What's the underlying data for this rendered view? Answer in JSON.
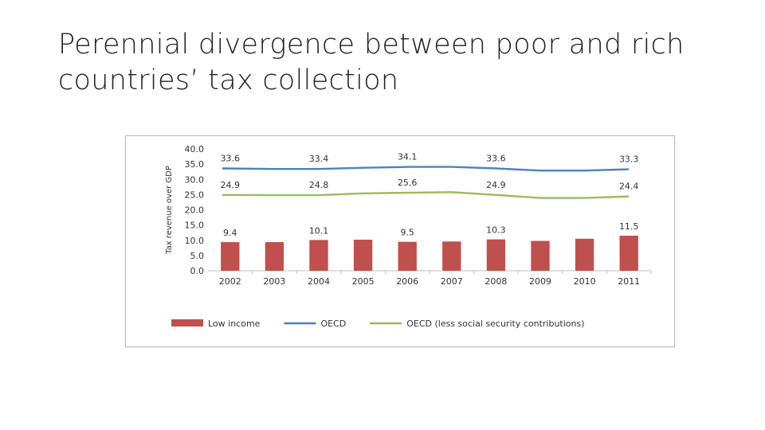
{
  "slide": {
    "title_line1": "Perennial divergence between poor and rich",
    "title_line2": "countries’ tax collection"
  },
  "chart_data": {
    "type": "bar",
    "ylabel": "Tax revenue over GDP",
    "ylim": [
      0,
      40
    ],
    "yticks": [
      "0.0",
      "5.0",
      "10.0",
      "15.0",
      "20.0",
      "25.0",
      "30.0",
      "35.0",
      "40.0"
    ],
    "categories": [
      "2002",
      "2003",
      "2004",
      "2005",
      "2006",
      "2007",
      "2008",
      "2009",
      "2010",
      "2011"
    ],
    "grid": false,
    "legend_position": "bottom",
    "series": [
      {
        "name": "Low income",
        "kind": "bar",
        "color": "#c0504d",
        "values": [
          9.4,
          9.4,
          10.1,
          10.2,
          9.5,
          9.6,
          10.3,
          9.8,
          10.5,
          11.5
        ],
        "labels": [
          "9.4",
          "",
          "10.1",
          "",
          "9.5",
          "",
          "10.3",
          "",
          "",
          "11.5"
        ]
      },
      {
        "name": "OECD",
        "kind": "line",
        "color": "#4f81bd",
        "values": [
          33.6,
          33.4,
          33.4,
          33.8,
          34.1,
          34.1,
          33.6,
          32.9,
          32.9,
          33.3
        ],
        "labels": [
          "33.6",
          "",
          "33.4",
          "",
          "34.1",
          "",
          "33.6",
          "",
          "",
          "33.3"
        ]
      },
      {
        "name": "OECD (less social security contributions)",
        "kind": "line",
        "color": "#9bbb59",
        "values": [
          24.9,
          24.8,
          24.8,
          25.4,
          25.6,
          25.8,
          24.9,
          23.9,
          23.9,
          24.4
        ],
        "labels": [
          "24.9",
          "",
          "24.8",
          "",
          "25.6",
          "",
          "24.9",
          "",
          "",
          "24.4"
        ]
      }
    ]
  }
}
